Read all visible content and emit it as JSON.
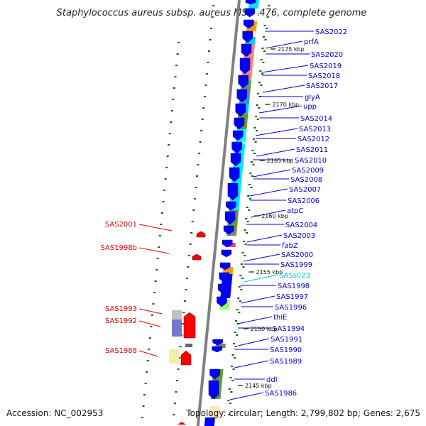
{
  "title": "Staphylococcus aureus subsp. aureus MSSA476, complete genome",
  "footer": {
    "accession": "Accession: NC_002953",
    "topology": "Topology: circular; Length: 2,799,802 bp; Genes: 2,675"
  },
  "colors": {
    "backbone": "#808080",
    "right_label": "#0000cc",
    "left_label": "#dd0000",
    "rna_label": "#00bcd4",
    "tick": "#006400",
    "forward_gene": "#ff0000",
    "reverse_gene": "#0000ff"
  },
  "scale_labels": [
    "2175 kbp",
    "2170 kbp",
    "2165 kbp",
    "2160 kbp",
    "2155 kbp",
    "2150 kbp",
    "2145 kbp"
  ],
  "right_labels": [
    {
      "text": "SAS2022",
      "type": "gene"
    },
    {
      "text": "prfA",
      "type": "gene"
    },
    {
      "text": "SAS2020",
      "type": "gene"
    },
    {
      "text": "SAS2019",
      "type": "gene"
    },
    {
      "text": "SAS2018",
      "type": "gene"
    },
    {
      "text": "SAS2017",
      "type": "gene"
    },
    {
      "text": "glyA",
      "type": "gene"
    },
    {
      "text": "upp",
      "type": "gene"
    },
    {
      "text": "SAS2014",
      "type": "gene"
    },
    {
      "text": "SAS2013",
      "type": "gene"
    },
    {
      "text": "SAS2012",
      "type": "gene"
    },
    {
      "text": "SAS2011",
      "type": "gene"
    },
    {
      "text": "SAS2010",
      "type": "gene"
    },
    {
      "text": "SAS2009",
      "type": "gene"
    },
    {
      "text": "SAS2008",
      "type": "gene"
    },
    {
      "text": "SAS2007",
      "type": "gene"
    },
    {
      "text": "SAS2006",
      "type": "gene"
    },
    {
      "text": "atpC",
      "type": "gene"
    },
    {
      "text": "SAS2004",
      "type": "gene"
    },
    {
      "text": "SAS2003",
      "type": "gene"
    },
    {
      "text": "fabZ",
      "type": "gene"
    },
    {
      "text": "SAS2000",
      "type": "gene"
    },
    {
      "text": "SAS1999",
      "type": "gene"
    },
    {
      "text": "SASs023",
      "type": "rna"
    },
    {
      "text": "SAS1998",
      "type": "gene"
    },
    {
      "text": "SAS1997",
      "type": "gene"
    },
    {
      "text": "SAS1996",
      "type": "gene"
    },
    {
      "text": "thiE",
      "type": "gene"
    },
    {
      "text": "SAS1994",
      "type": "gene"
    },
    {
      "text": "SAS1991",
      "type": "gene"
    },
    {
      "text": "SAS1990",
      "type": "gene"
    },
    {
      "text": "SAS1989",
      "type": "gene"
    },
    {
      "text": "ddl",
      "type": "gene"
    },
    {
      "text": "SAS1986",
      "type": "gene"
    }
  ],
  "left_labels": [
    {
      "text": "SAS2001"
    },
    {
      "text": "SAS1998b"
    },
    {
      "text": "SAS1993"
    },
    {
      "text": "SAS1992"
    },
    {
      "text": "SAS1988"
    }
  ]
}
